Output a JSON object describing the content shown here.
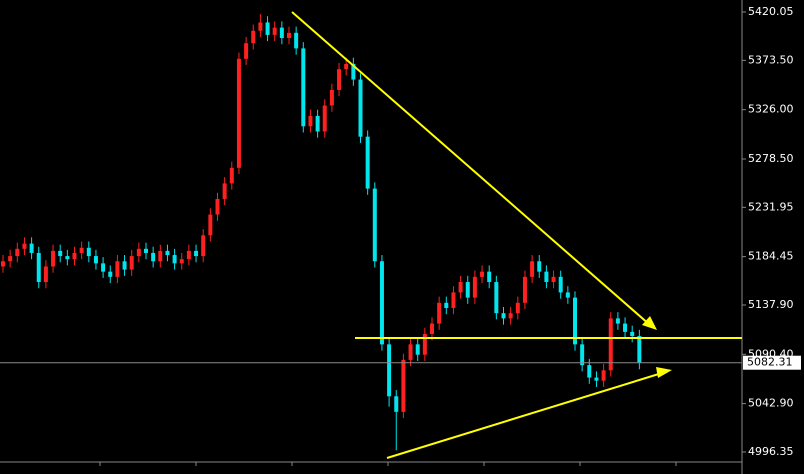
{
  "chart_data": {
    "type": "candlestick",
    "up_color": "#ff2020",
    "down_color": "#00e5ee",
    "background": "#000000",
    "ylim": [
      4986.7,
      5431.6
    ],
    "yticks": [
      5420.05,
      {
        "value": 5373.5,
        "label": "5373.50"
      },
      {
        "value": 5326,
        "label": "5326.00"
      },
      {
        "value": 5278.5,
        "label": "5278.50"
      },
      5231.95,
      5184.45,
      {
        "value": 5137.9,
        "label": "5137.90"
      },
      {
        "value": 5090.4,
        "label": "5090.40"
      },
      {
        "value": 5042.9,
        "label": "5042.90"
      },
      4996.35
    ],
    "current_price": 5082.31,
    "open": [
      5175,
      5180,
      5185,
      5192,
      5197,
      5188,
      5160,
      5175,
      5190,
      5185,
      5182,
      5188,
      5193,
      5185,
      5178,
      5170,
      5165,
      5180,
      5172,
      5185,
      5192,
      5188,
      5180,
      5190,
      5186,
      5178,
      5182,
      5190,
      5185,
      5205,
      5225,
      5240,
      5255,
      5270,
      5375,
      5390,
      5402,
      5410,
      5398,
      5405,
      5395,
      5400,
      5385,
      5310,
      5320,
      5305,
      5330,
      5345,
      5365,
      5370,
      5355,
      5300,
      5250,
      5180,
      5100,
      5050,
      5035,
      5085,
      5100,
      5090,
      5110,
      5120,
      5140,
      5135,
      5150,
      5160,
      5145,
      5165,
      5170,
      5160,
      5130,
      5125,
      5130,
      5140,
      5165,
      5180,
      5170,
      5160,
      5165,
      5150,
      5145,
      5100,
      5080,
      5068,
      5065,
      5075,
      5125,
      5120,
      5112,
      5108
    ],
    "high": [
      5186,
      5191,
      5198,
      5203,
      5203,
      5194,
      5181,
      5196,
      5196,
      5191,
      5194,
      5199,
      5199,
      5191,
      5184,
      5176,
      5186,
      5186,
      5191,
      5198,
      5198,
      5194,
      5196,
      5196,
      5192,
      5188,
      5196,
      5196,
      5211,
      5231,
      5246,
      5261,
      5276,
      5381,
      5396,
      5408,
      5418,
      5416,
      5411,
      5411,
      5406,
      5406,
      5391,
      5326,
      5326,
      5336,
      5351,
      5371,
      5376,
      5376,
      5361,
      5306,
      5256,
      5186,
      5106,
      5056,
      5091,
      5106,
      5106,
      5116,
      5126,
      5146,
      5146,
      5156,
      5166,
      5166,
      5171,
      5176,
      5176,
      5166,
      5136,
      5136,
      5146,
      5171,
      5186,
      5186,
      5176,
      5171,
      5171,
      5156,
      5151,
      5106,
      5086,
      5074,
      5081,
      5131,
      5131,
      5126,
      5118,
      5114
    ],
    "low": [
      5169,
      5174,
      5179,
      5186,
      5182,
      5154,
      5154,
      5169,
      5179,
      5176,
      5176,
      5182,
      5179,
      5172,
      5164,
      5159,
      5159,
      5166,
      5166,
      5179,
      5182,
      5174,
      5174,
      5180,
      5172,
      5172,
      5176,
      5179,
      5179,
      5199,
      5219,
      5234,
      5249,
      5264,
      5369,
      5384,
      5396,
      5392,
      5392,
      5389,
      5389,
      5379,
      5304,
      5304,
      5299,
      5299,
      5324,
      5339,
      5359,
      5349,
      5294,
      5244,
      5174,
      5094,
      5040,
      4998,
      5029,
      5079,
      5084,
      5084,
      5104,
      5114,
      5129,
      5129,
      5144,
      5139,
      5139,
      5159,
      5154,
      5124,
      5119,
      5119,
      5124,
      5134,
      5159,
      5164,
      5154,
      5154,
      5144,
      5139,
      5094,
      5074,
      5062,
      5059,
      5059,
      5069,
      5114,
      5106,
      5102,
      5076
    ],
    "close": [
      5180,
      5185,
      5192,
      5197,
      5188,
      5160,
      5175,
      5190,
      5185,
      5182,
      5188,
      5193,
      5185,
      5178,
      5170,
      5165,
      5180,
      5172,
      5185,
      5192,
      5188,
      5180,
      5190,
      5186,
      5178,
      5182,
      5190,
      5185,
      5205,
      5225,
      5240,
      5255,
      5270,
      5375,
      5390,
      5402,
      5410,
      5398,
      5405,
      5395,
      5400,
      5385,
      5310,
      5320,
      5305,
      5330,
      5345,
      5365,
      5370,
      5355,
      5300,
      5250,
      5180,
      5100,
      5050,
      5035,
      5085,
      5100,
      5090,
      5110,
      5120,
      5140,
      5135,
      5150,
      5160,
      5145,
      5165,
      5170,
      5160,
      5130,
      5125,
      5130,
      5140,
      5165,
      5180,
      5170,
      5160,
      5165,
      5150,
      5145,
      5100,
      5080,
      5068,
      5065,
      5075,
      5125,
      5120,
      5112,
      5108,
      5082.31
    ]
  }
}
